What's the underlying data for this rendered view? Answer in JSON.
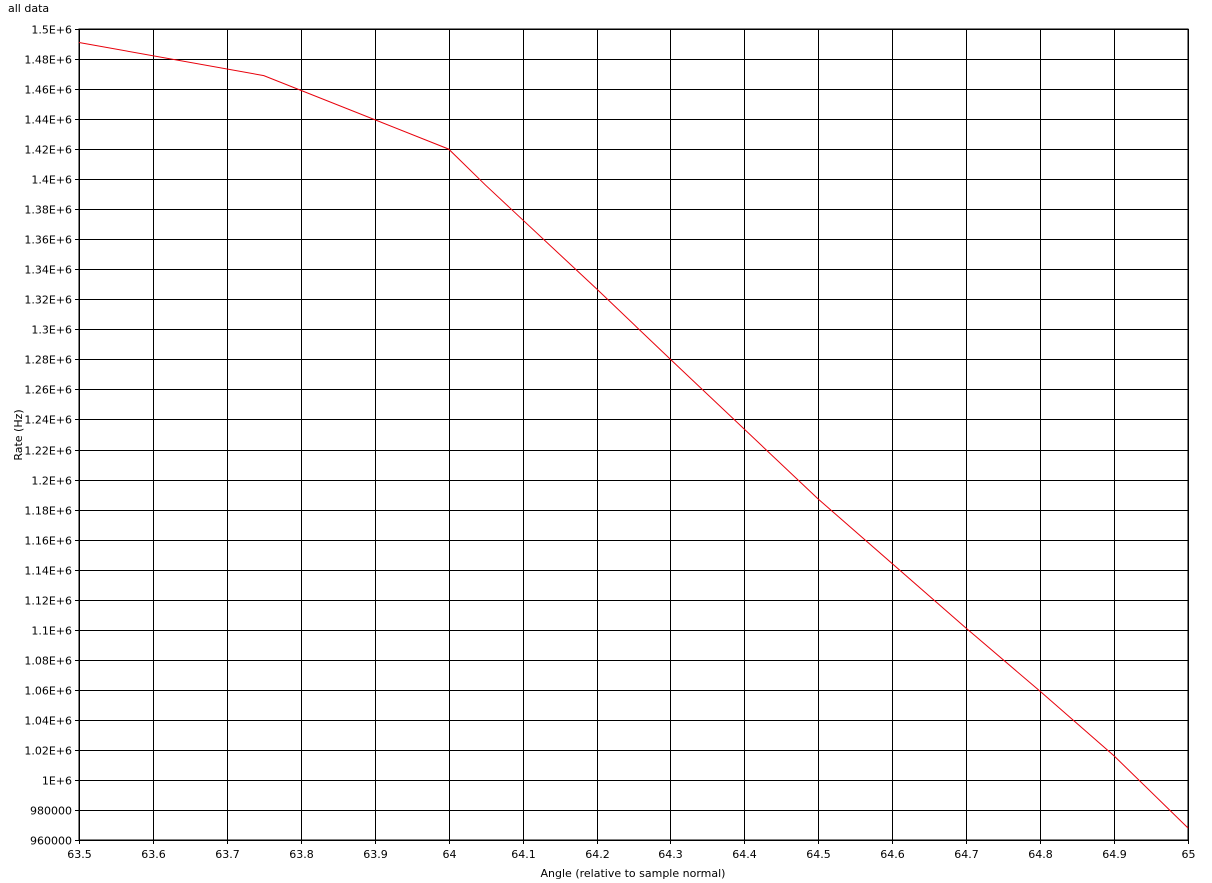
{
  "chart_data": {
    "type": "line",
    "title": "all data",
    "xlabel": "Angle (relative to sample normal)",
    "ylabel": "Rate (Hz)",
    "xlim": [
      63.5,
      65
    ],
    "ylim": [
      960000,
      1500000
    ],
    "x_ticks": [
      63.5,
      63.6,
      63.7,
      63.8,
      63.9,
      64,
      64.1,
      64.2,
      64.3,
      64.4,
      64.5,
      64.6,
      64.7,
      64.8,
      64.9,
      65
    ],
    "x_tick_labels": [
      "63.5",
      "63.6",
      "63.7",
      "63.8",
      "63.9",
      "64",
      "64.1",
      "64.2",
      "64.3",
      "64.4",
      "64.5",
      "64.6",
      "64.7",
      "64.8",
      "64.9",
      "65"
    ],
    "y_ticks": [
      960000,
      980000,
      1000000,
      1020000,
      1040000,
      1060000,
      1080000,
      1100000,
      1120000,
      1140000,
      1160000,
      1180000,
      1200000,
      1220000,
      1240000,
      1260000,
      1280000,
      1300000,
      1320000,
      1340000,
      1360000,
      1380000,
      1400000,
      1420000,
      1440000,
      1460000,
      1480000,
      1500000
    ],
    "y_tick_labels": [
      "960000",
      "980000",
      "1E+6",
      "1.02E+6",
      "1.04E+6",
      "1.06E+6",
      "1.08E+6",
      "1.1E+6",
      "1.12E+6",
      "1.14E+6",
      "1.16E+6",
      "1.18E+6",
      "1.2E+6",
      "1.22E+6",
      "1.24E+6",
      "1.26E+6",
      "1.28E+6",
      "1.3E+6",
      "1.32E+6",
      "1.34E+6",
      "1.36E+6",
      "1.38E+6",
      "1.4E+6",
      "1.42E+6",
      "1.44E+6",
      "1.46E+6",
      "1.48E+6",
      "1.5E+6"
    ],
    "grid": true,
    "series": [
      {
        "color": "#e8000b",
        "x": [
          63.5,
          63.75,
          64.0,
          64.05,
          64.2,
          64.3,
          64.5,
          64.7,
          64.8,
          64.9,
          65.0
        ],
        "y": [
          1491000,
          1469000,
          1420000,
          1396000,
          1327000,
          1280000,
          1187000,
          1101000,
          1059000,
          1016000,
          968000
        ]
      }
    ]
  }
}
